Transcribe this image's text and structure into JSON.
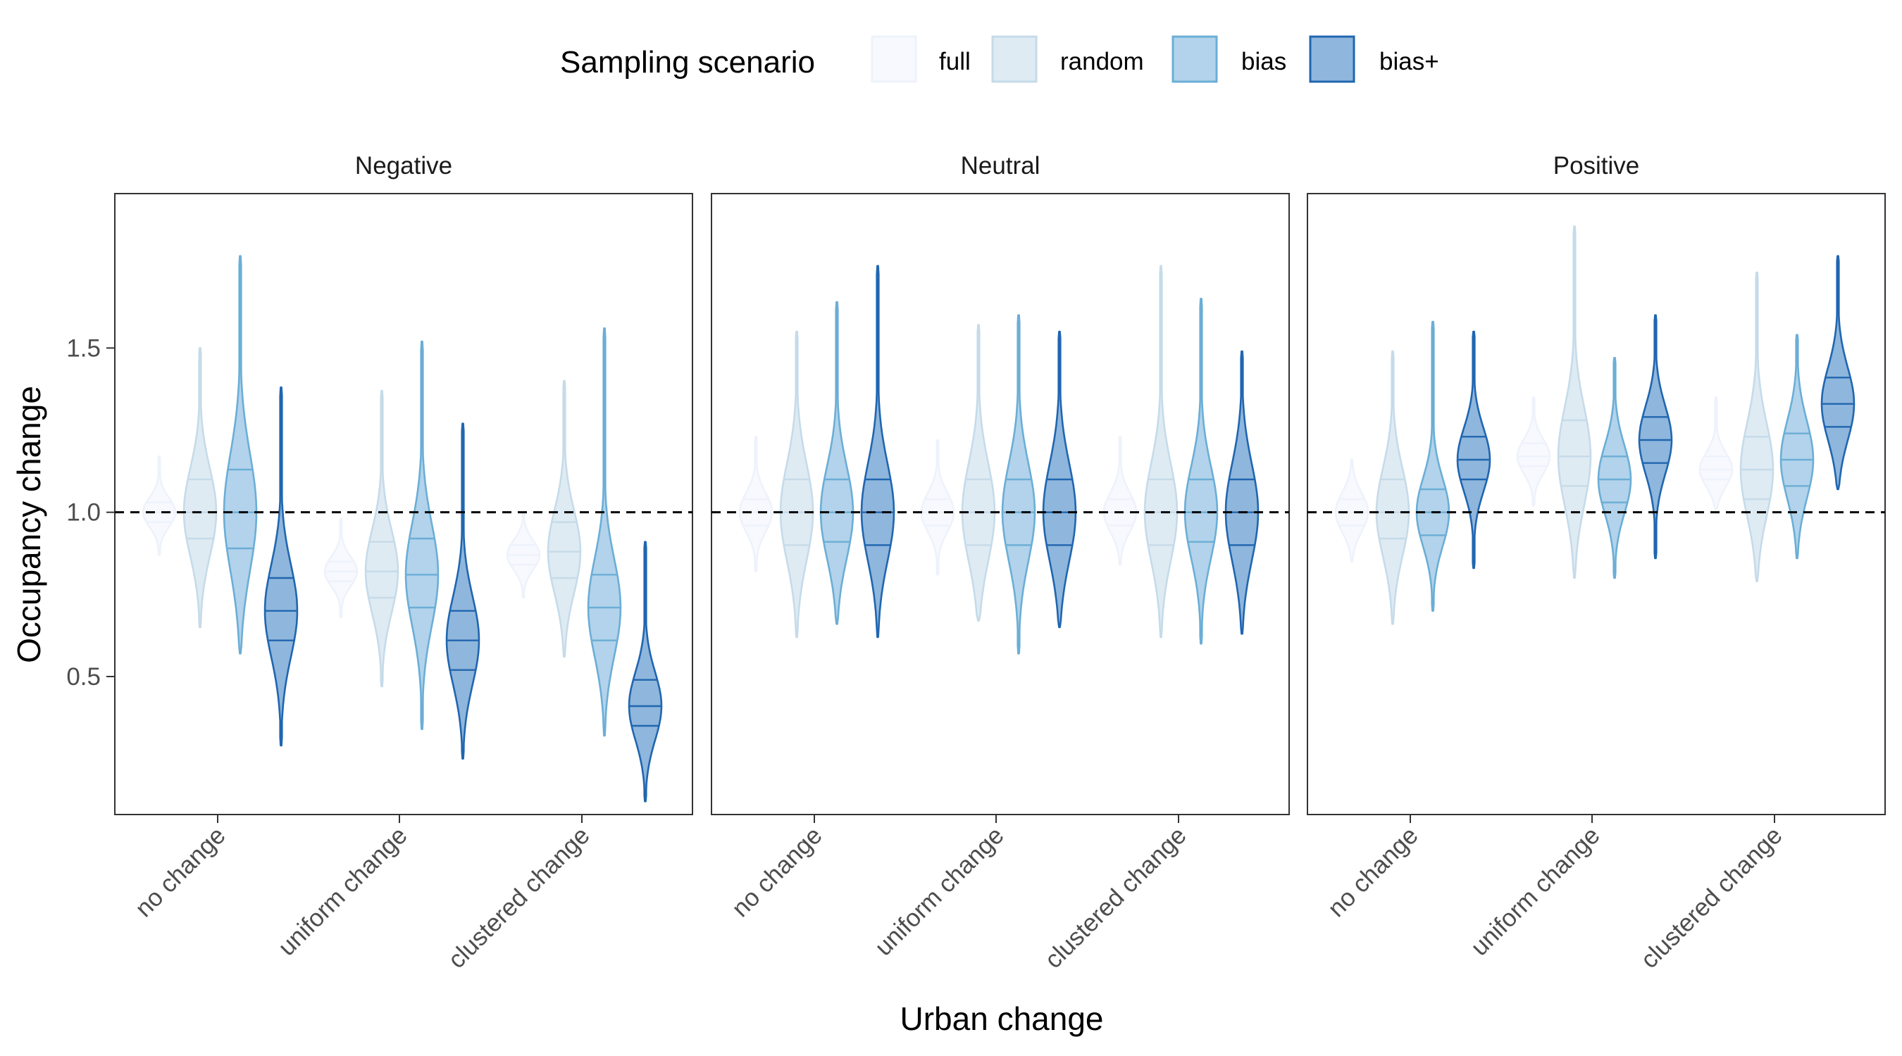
{
  "chart_data": {
    "type": "violin",
    "legend": {
      "title": "Sampling scenario",
      "position": "top",
      "entries": [
        {
          "label": "full",
          "fill": "#f7f9fe",
          "stroke": "#eef2fb"
        },
        {
          "label": "random",
          "fill": "#dfebf3",
          "stroke": "#c6dbe9"
        },
        {
          "label": "bias",
          "fill": "#b2d3eb",
          "stroke": "#6baed6"
        },
        {
          "label": "bias+",
          "fill": "#8fb6dc",
          "stroke": "#2066b0"
        }
      ]
    },
    "xlabel": "Urban change",
    "ylabel": "Occupancy change",
    "ylim": [
      0.08,
      1.97
    ],
    "yticks": [
      0.5,
      1.0,
      1.5
    ],
    "ytick_labels": [
      "0.5",
      "1.0",
      "1.5"
    ],
    "reference_line": 1.0,
    "categories": [
      "no change",
      "uniform change",
      "clustered change"
    ],
    "panels": [
      {
        "title": "Negative",
        "groups": [
          {
            "category": "no change",
            "violins": [
              {
                "series": "full",
                "min": 0.87,
                "max": 1.17,
                "q1": 0.97,
                "median": 1.0,
                "q3": 1.03
              },
              {
                "series": "random",
                "min": 0.65,
                "max": 1.5,
                "q1": 0.92,
                "median": 1.0,
                "q3": 1.1
              },
              {
                "series": "bias",
                "min": 0.57,
                "max": 1.78,
                "q1": 0.89,
                "median": 1.0,
                "q3": 1.13
              },
              {
                "series": "bias+",
                "min": 0.29,
                "max": 1.38,
                "q1": 0.61,
                "median": 0.7,
                "q3": 0.8
              }
            ]
          },
          {
            "category": "uniform change",
            "violins": [
              {
                "series": "full",
                "min": 0.68,
                "max": 0.98,
                "q1": 0.79,
                "median": 0.82,
                "q3": 0.85
              },
              {
                "series": "random",
                "min": 0.47,
                "max": 1.37,
                "q1": 0.74,
                "median": 0.82,
                "q3": 0.91
              },
              {
                "series": "bias",
                "min": 0.34,
                "max": 1.52,
                "q1": 0.71,
                "median": 0.81,
                "q3": 0.92
              },
              {
                "series": "bias+",
                "min": 0.25,
                "max": 1.27,
                "q1": 0.52,
                "median": 0.61,
                "q3": 0.7
              }
            ]
          },
          {
            "category": "clustered change",
            "violins": [
              {
                "series": "full",
                "min": 0.74,
                "max": 1.0,
                "q1": 0.84,
                "median": 0.87,
                "q3": 0.9
              },
              {
                "series": "random",
                "min": 0.56,
                "max": 1.4,
                "q1": 0.8,
                "median": 0.88,
                "q3": 0.97
              },
              {
                "series": "bias",
                "min": 0.32,
                "max": 1.56,
                "q1": 0.61,
                "median": 0.71,
                "q3": 0.81
              },
              {
                "series": "bias+",
                "min": 0.12,
                "max": 0.91,
                "q1": 0.35,
                "median": 0.41,
                "q3": 0.49
              }
            ]
          }
        ]
      },
      {
        "title": "Neutral",
        "groups": [
          {
            "category": "no change",
            "violins": [
              {
                "series": "full",
                "min": 0.82,
                "max": 1.23,
                "q1": 0.96,
                "median": 1.0,
                "q3": 1.04
              },
              {
                "series": "random",
                "min": 0.62,
                "max": 1.55,
                "q1": 0.9,
                "median": 1.0,
                "q3": 1.1
              },
              {
                "series": "bias",
                "min": 0.66,
                "max": 1.64,
                "q1": 0.91,
                "median": 1.0,
                "q3": 1.1
              },
              {
                "series": "bias+",
                "min": 0.62,
                "max": 1.75,
                "q1": 0.9,
                "median": 1.0,
                "q3": 1.1
              }
            ]
          },
          {
            "category": "uniform change",
            "violins": [
              {
                "series": "full",
                "min": 0.81,
                "max": 1.22,
                "q1": 0.96,
                "median": 1.0,
                "q3": 1.04
              },
              {
                "series": "random",
                "min": 0.67,
                "max": 1.57,
                "q1": 0.9,
                "median": 1.0,
                "q3": 1.1
              },
              {
                "series": "bias",
                "min": 0.57,
                "max": 1.6,
                "q1": 0.9,
                "median": 1.0,
                "q3": 1.1
              },
              {
                "series": "bias+",
                "min": 0.65,
                "max": 1.55,
                "q1": 0.9,
                "median": 1.0,
                "q3": 1.1
              }
            ]
          },
          {
            "category": "clustered change",
            "violins": [
              {
                "series": "full",
                "min": 0.84,
                "max": 1.23,
                "q1": 0.96,
                "median": 1.0,
                "q3": 1.04
              },
              {
                "series": "random",
                "min": 0.62,
                "max": 1.75,
                "q1": 0.9,
                "median": 1.0,
                "q3": 1.1
              },
              {
                "series": "bias",
                "min": 0.6,
                "max": 1.65,
                "q1": 0.91,
                "median": 1.0,
                "q3": 1.1
              },
              {
                "series": "bias+",
                "min": 0.63,
                "max": 1.49,
                "q1": 0.9,
                "median": 1.0,
                "q3": 1.1
              }
            ]
          }
        ]
      },
      {
        "title": "Positive",
        "groups": [
          {
            "category": "no change",
            "violins": [
              {
                "series": "full",
                "min": 0.85,
                "max": 1.16,
                "q1": 0.96,
                "median": 1.0,
                "q3": 1.04
              },
              {
                "series": "random",
                "min": 0.66,
                "max": 1.49,
                "q1": 0.92,
                "median": 1.0,
                "q3": 1.1
              },
              {
                "series": "bias",
                "min": 0.7,
                "max": 1.58,
                "q1": 0.93,
                "median": 1.0,
                "q3": 1.07
              },
              {
                "series": "bias+",
                "min": 0.83,
                "max": 1.55,
                "q1": 1.1,
                "median": 1.16,
                "q3": 1.23
              }
            ]
          },
          {
            "category": "uniform change",
            "violins": [
              {
                "series": "full",
                "min": 1.02,
                "max": 1.35,
                "q1": 1.14,
                "median": 1.17,
                "q3": 1.21
              },
              {
                "series": "random",
                "min": 0.8,
                "max": 1.87,
                "q1": 1.08,
                "median": 1.17,
                "q3": 1.28
              },
              {
                "series": "bias",
                "min": 0.8,
                "max": 1.47,
                "q1": 1.03,
                "median": 1.1,
                "q3": 1.17
              },
              {
                "series": "bias+",
                "min": 0.86,
                "max": 1.6,
                "q1": 1.15,
                "median": 1.22,
                "q3": 1.29
              }
            ]
          },
          {
            "category": "clustered change",
            "violins": [
              {
                "series": "full",
                "min": 1.01,
                "max": 1.35,
                "q1": 1.1,
                "median": 1.13,
                "q3": 1.17
              },
              {
                "series": "random",
                "min": 0.79,
                "max": 1.73,
                "q1": 1.04,
                "median": 1.13,
                "q3": 1.23
              },
              {
                "series": "bias",
                "min": 0.86,
                "max": 1.54,
                "q1": 1.08,
                "median": 1.16,
                "q3": 1.24
              },
              {
                "series": "bias+",
                "min": 1.07,
                "max": 1.78,
                "q1": 1.26,
                "median": 1.33,
                "q3": 1.41
              }
            ]
          }
        ]
      }
    ]
  }
}
